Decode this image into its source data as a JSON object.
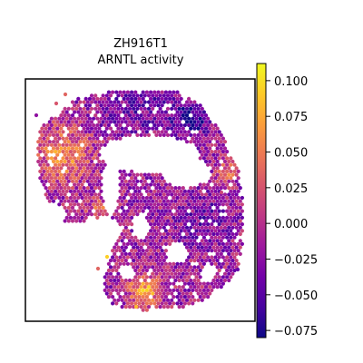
{
  "chart_data": {
    "type": "heatmap",
    "title": "ZH916T1",
    "subtitle": "ARNTL activity",
    "xlabel": "",
    "ylabel": "",
    "grid": false,
    "colormap": "plasma",
    "colorbar": {
      "min": -0.08,
      "max": 0.112,
      "ticks": [
        0.1,
        0.075,
        0.05,
        0.025,
        0.0,
        -0.025,
        -0.05,
        -0.075
      ],
      "tick_labels": [
        "0.100",
        "0.075",
        "0.050",
        "0.025",
        "0.000",
        "−0.025",
        "−0.050",
        "−0.075"
      ]
    },
    "spots_note_regions": [
      {
        "region": "upper-left lobe",
        "level": 0.06
      },
      {
        "region": "top ridge",
        "level": -0.04
      },
      {
        "region": "upper-right dark patch",
        "level": -0.075
      },
      {
        "region": "right band",
        "level": -0.02
      },
      {
        "region": "central lower",
        "level": 0.02
      },
      {
        "region": "bottom-center bright",
        "level": 0.09
      }
    ]
  },
  "colors": {
    "plasma": [
      "#0d0887",
      "#46039f",
      "#7201a8",
      "#9c179e",
      "#bd3786",
      "#d8576b",
      "#ed7953",
      "#fb9f3a",
      "#fdca26",
      "#f0f921"
    ]
  }
}
